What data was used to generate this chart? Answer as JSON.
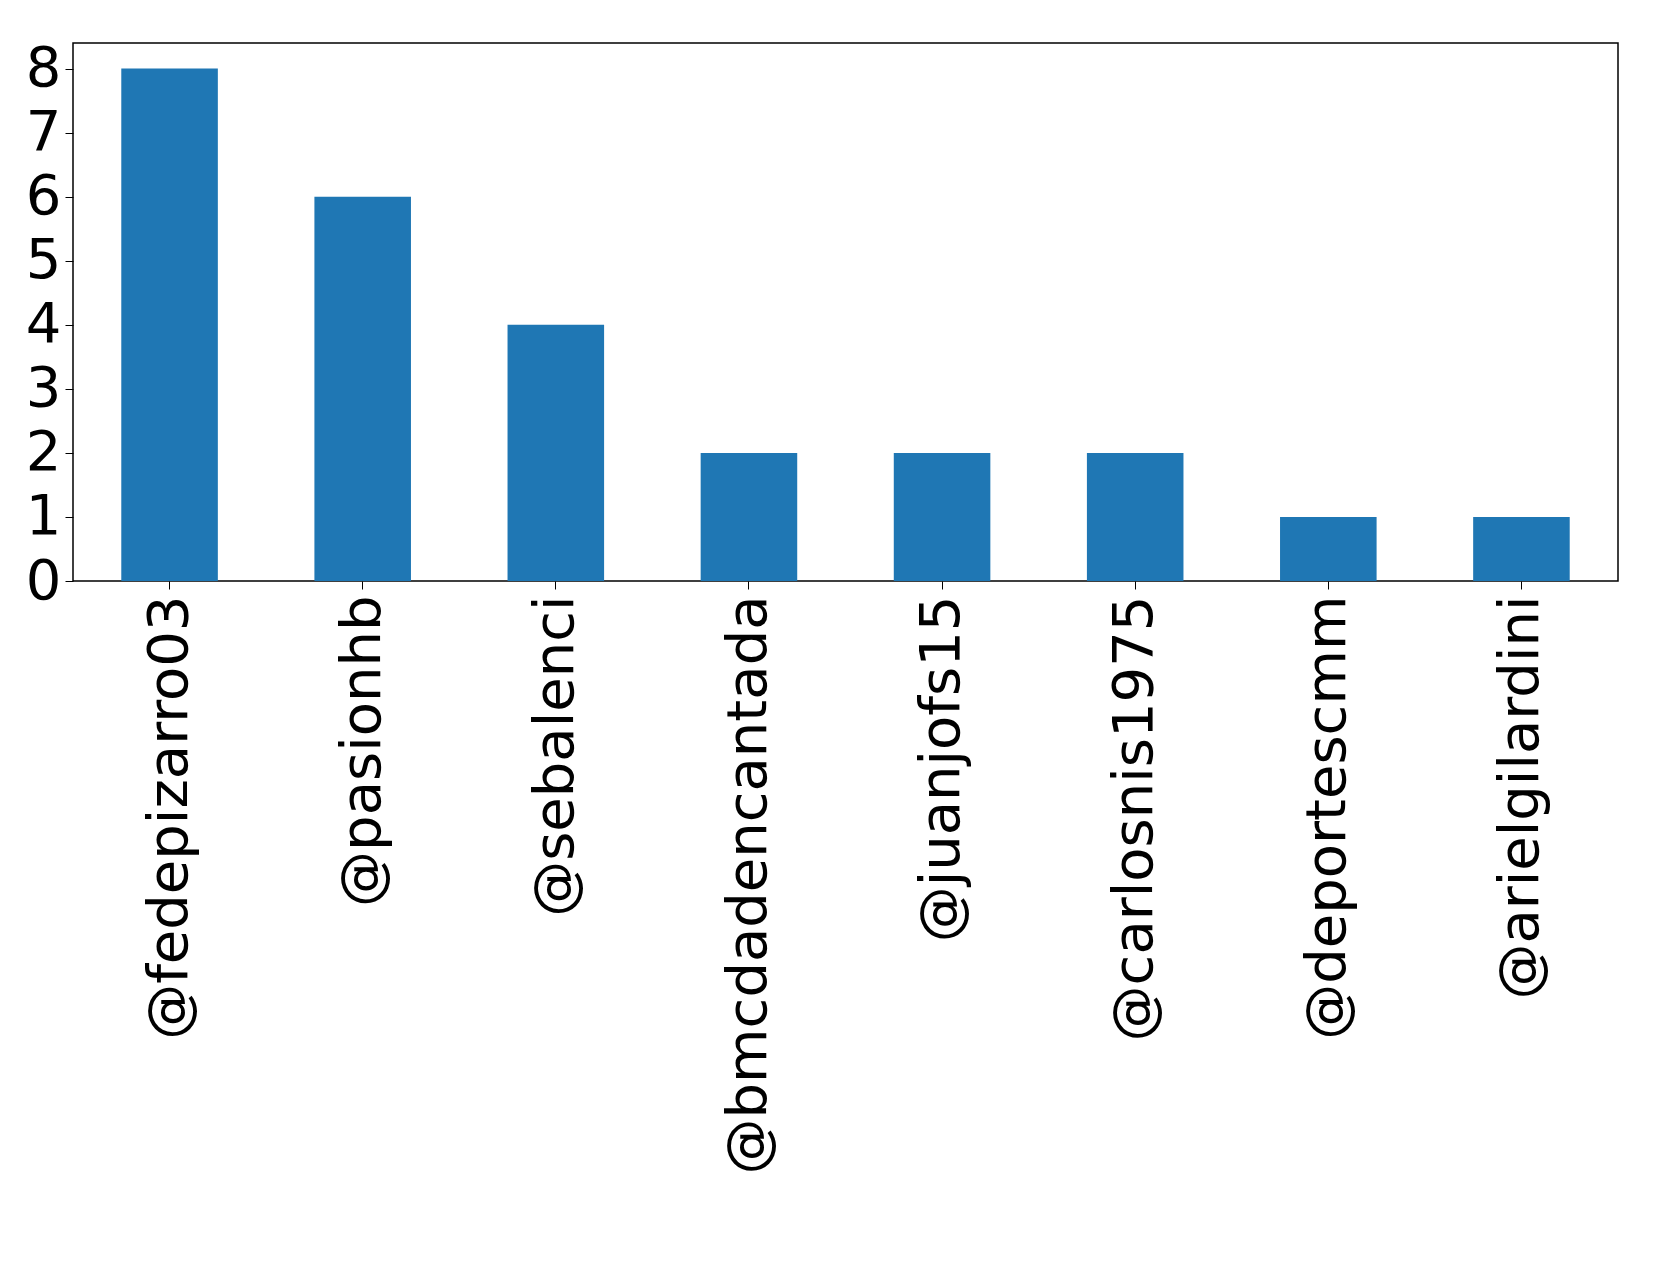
{
  "chart_data": {
    "type": "bar",
    "categories": [
      "@fedepizarro03",
      "@pasionhb",
      "@sebalenci",
      "@bmcdadencantada",
      "@juanjofs15",
      "@carlosnis1975",
      "@deportescmm",
      "@arielgilardini"
    ],
    "values": [
      8,
      6,
      4,
      2,
      2,
      2,
      1,
      1
    ],
    "color": "#1f77b4",
    "ylim": [
      0,
      8.4
    ],
    "yticks": [
      0,
      1,
      2,
      3,
      4,
      5,
      6,
      7,
      8
    ],
    "grid": false
  }
}
